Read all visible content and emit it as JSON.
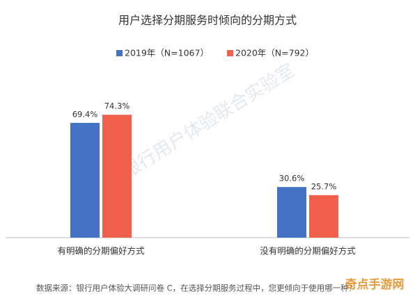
{
  "chart_data": {
    "type": "bar",
    "title": "用户选择分期服务时倾向的分期方式",
    "categories": [
      "有明确的分期偏好方式",
      "没有明确的分期偏好方式"
    ],
    "series": [
      {
        "name": "2019年（N=1067）",
        "color": "#4472c4",
        "values": [
          69.4,
          30.6
        ],
        "value_labels": [
          "69.4%",
          "30.6%"
        ]
      },
      {
        "name": "2020年（N=792）",
        "color": "#f0604d",
        "values": [
          74.3,
          25.7
        ],
        "value_labels": [
          "74.3%",
          "25.7%"
        ]
      }
    ],
    "source": "数据来源：银行用户体验大调研问卷 C，在选择分期服务过程中，您更倾向于使用哪一种？",
    "watermark": "银行用户体验联合实验室",
    "logo": "奇点手游网"
  }
}
